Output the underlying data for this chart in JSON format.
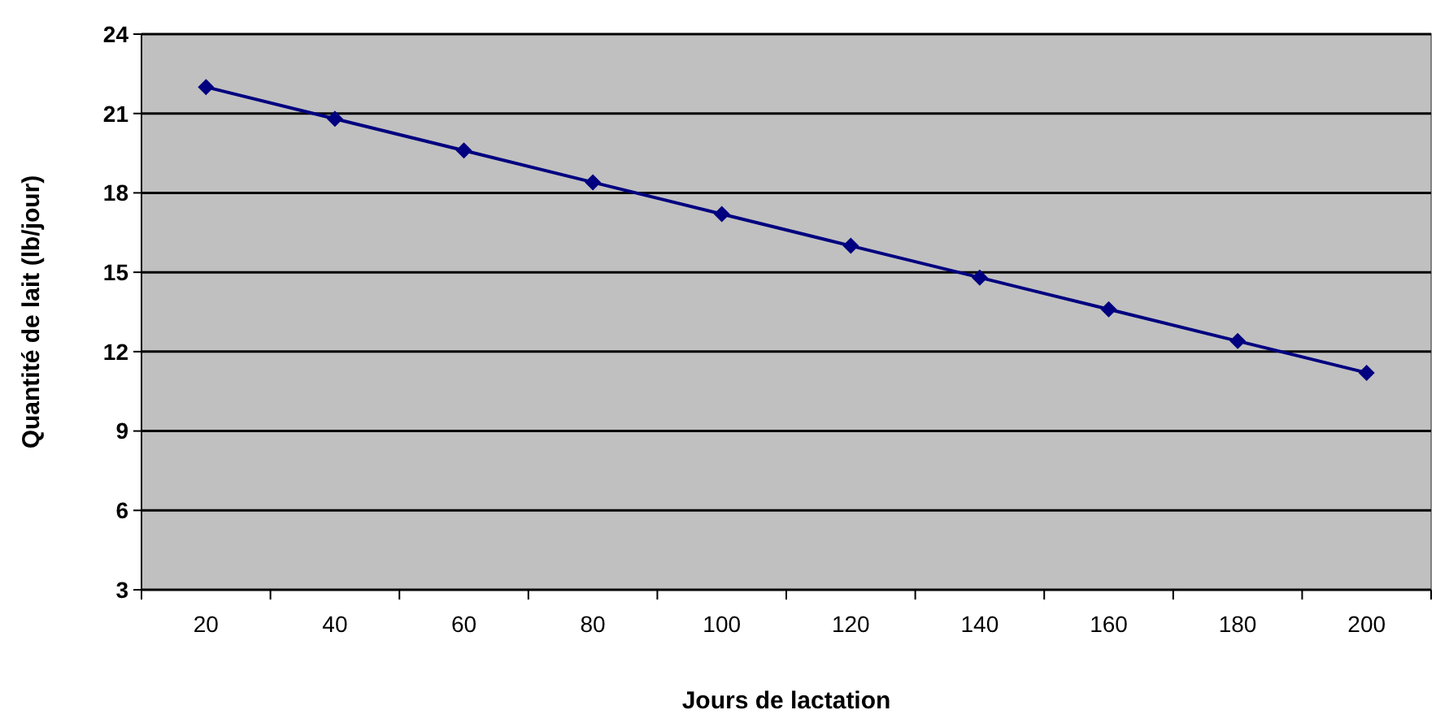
{
  "chart_data": {
    "type": "line",
    "xlabel": "Jours de lactation",
    "ylabel": "Quantité de lait (lb/jour)",
    "categories": [
      "20",
      "40",
      "60",
      "80",
      "100",
      "120",
      "140",
      "160",
      "180",
      "200"
    ],
    "series": [
      {
        "color": "#000080",
        "values": [
          22,
          20.8,
          19.6,
          18.4,
          17.2,
          16,
          14.8,
          13.6,
          12.4,
          11.2
        ]
      }
    ],
    "ylim": [
      3,
      24
    ],
    "yticks": [
      3,
      6,
      9,
      12,
      15,
      18,
      21,
      24
    ],
    "grid": "y",
    "marker": "diamond",
    "line_style": "solid"
  }
}
